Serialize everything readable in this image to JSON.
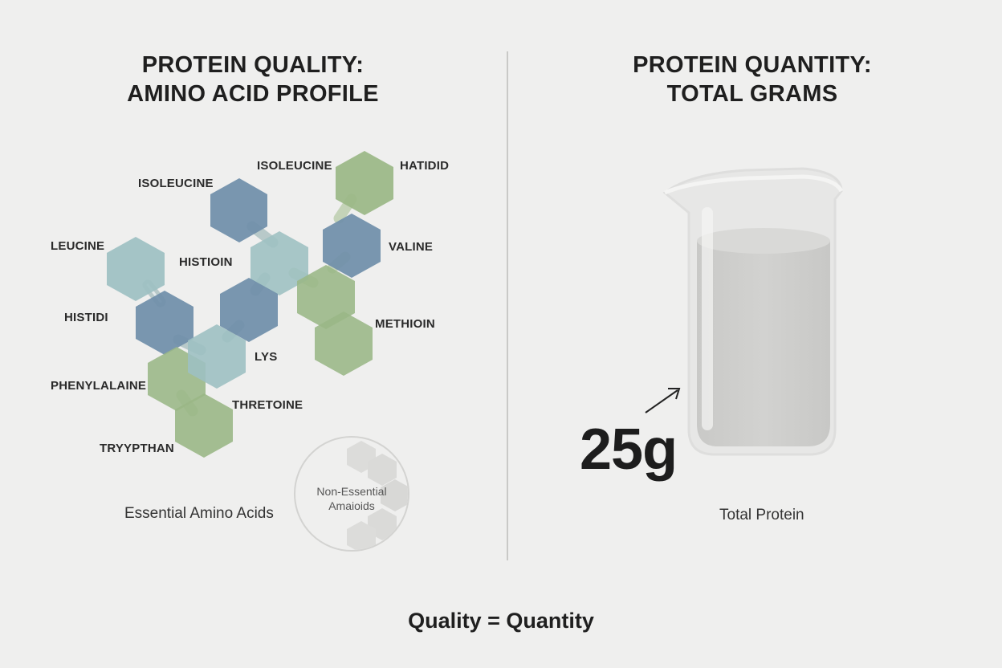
{
  "left_panel": {
    "title_line1": "PROTEIN QUALITY:",
    "title_line2": "AMINO ACID PROFILE",
    "caption": "Essential Amino Acids",
    "amino_acid_labels": [
      "ISOLEUCINE",
      "ISOLEUCINE",
      "HATIDID",
      "LEUCINE",
      "HISTIOIN",
      "VALINE",
      "HISTIDI",
      "METHIOIN",
      "LYS",
      "PHENYLALAINE",
      "THRETOINE",
      "TRYYPTHAN"
    ],
    "non_essential": {
      "line1": "Non-Essential",
      "line2": "Amaioids"
    }
  },
  "right_panel": {
    "title_line1": "PROTEIN QUANTITY:",
    "title_line2": "TOTAL GRAMS",
    "value": "25g",
    "caption": "Total Protein"
  },
  "equation": "Quality = Quantity",
  "colors": {
    "background": "#efefee",
    "hex_dark_blue": "#6f8ea9",
    "hex_light_teal": "#9dc0c2",
    "hex_green": "#9ab786",
    "divider": "#c9c9c7"
  }
}
